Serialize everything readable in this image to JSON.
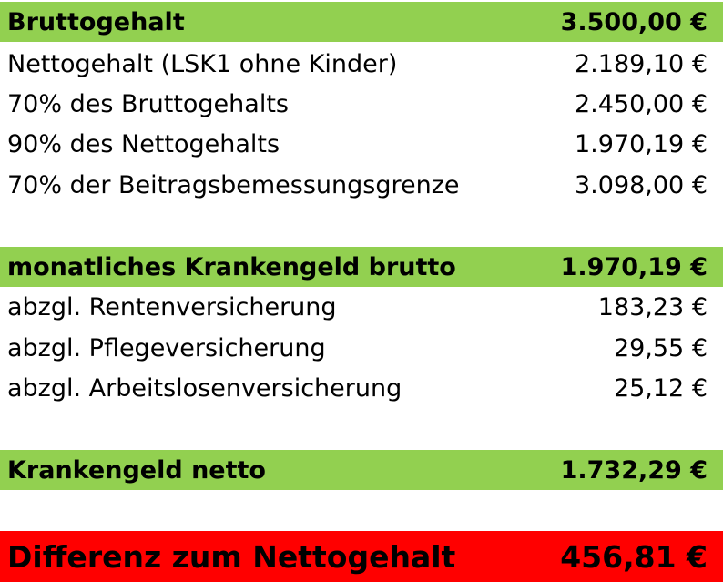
{
  "sections": [
    {
      "header": {
        "label": "Bruttogehalt",
        "value": "3.500,00 €"
      },
      "rows": [
        {
          "label": "Nettogehalt (LSK1 ohne Kinder)",
          "value": "2.189,10 €"
        },
        {
          "label": "70% des Bruttogehalts",
          "value": "2.450,00 €"
        },
        {
          "label": "90% des Nettogehalts",
          "value": "1.970,19 €"
        },
        {
          "label": "70% der Beitragsbemessungsgrenze",
          "value": "3.098,00 €"
        }
      ]
    },
    {
      "header": {
        "label": "monatliches Krankengeld brutto",
        "value": "1.970,19 €"
      },
      "rows": [
        {
          "label": "abzgl. Rentenversicherung",
          "value": "183,23 €"
        },
        {
          "label": "abzgl. Pflegeversicherung",
          "value": "29,55 €"
        },
        {
          "label": "abzgl. Arbeitslosenversicherung",
          "value": "25,12 €"
        }
      ]
    },
    {
      "header": {
        "label": "Krankengeld netto",
        "value": "1.732,29 €"
      },
      "rows": []
    }
  ],
  "total": {
    "label": "Differenz zum Nettogehalt",
    "value": "456,81 €"
  },
  "colors": {
    "header_bg": "#92d050",
    "total_bg": "#ff0000"
  }
}
